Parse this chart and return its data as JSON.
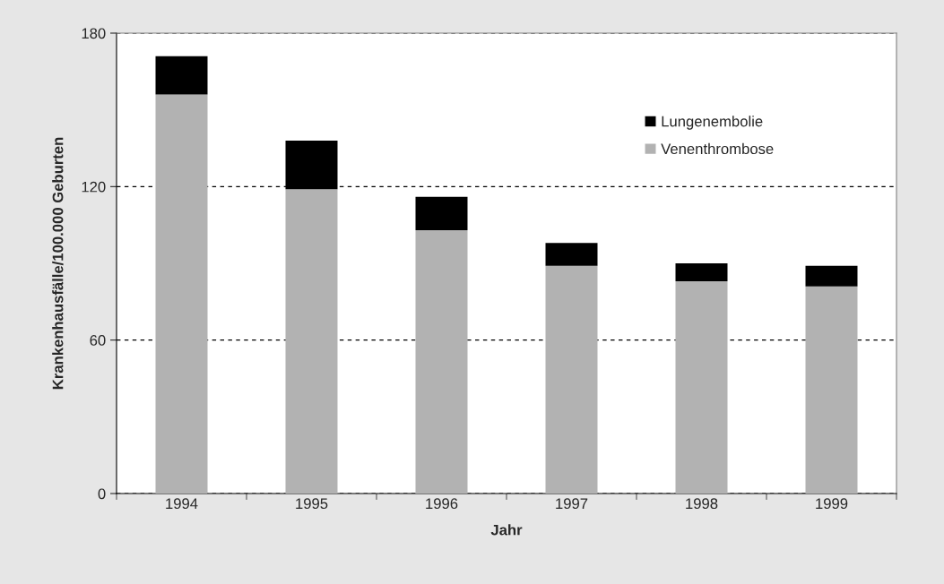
{
  "chart_data": {
    "type": "bar",
    "stacked": true,
    "xlabel": "Jahr",
    "ylabel": "Krankenhausfälle/100.000 Geburten",
    "categories": [
      "1994",
      "1995",
      "1996",
      "1997",
      "1998",
      "1999"
    ],
    "series": [
      {
        "name": "Venenthrombose",
        "color": "#b2b2b2",
        "values": [
          156,
          119,
          103,
          89,
          83,
          81
        ]
      },
      {
        "name": "Lungenembolie",
        "color": "#000000",
        "values": [
          15,
          19,
          13,
          9,
          7,
          8
        ]
      }
    ],
    "ylim": [
      0,
      180
    ],
    "yticks": [
      0,
      60,
      120,
      180
    ],
    "grid": "y",
    "line_style": "dashed",
    "legend": "top right"
  }
}
